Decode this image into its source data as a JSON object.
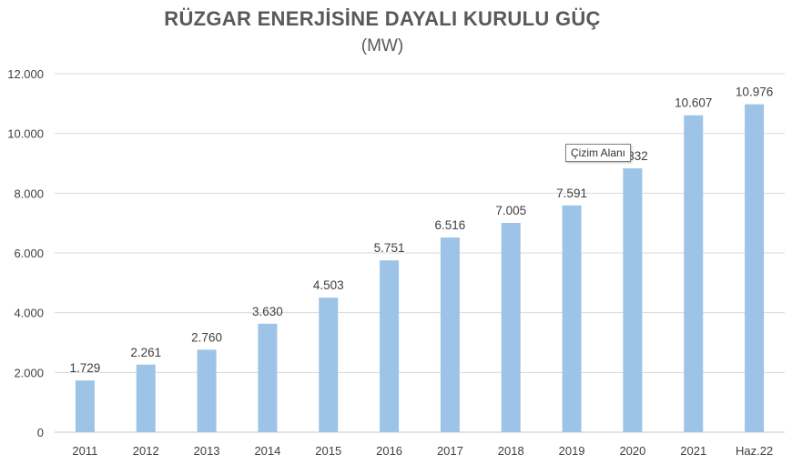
{
  "chart_data": {
    "type": "bar",
    "title": "RÜZGAR ENERJİSİNE DAYALI KURULU GÜÇ",
    "subtitle": "(MW)",
    "categories": [
      "2011",
      "2012",
      "2013",
      "2014",
      "2015",
      "2016",
      "2017",
      "2018",
      "2019",
      "2020",
      "2021",
      "Haz.22"
    ],
    "values": [
      1729,
      2261,
      2760,
      3630,
      4503,
      5751,
      6516,
      7005,
      7591,
      8832,
      10607,
      10976
    ],
    "value_labels": [
      "1.729",
      "2.261",
      "2.760",
      "3.630",
      "4.503",
      "5.751",
      "6.516",
      "7.005",
      "7.591",
      "8.832",
      "10.607",
      "10.976"
    ],
    "ylim": [
      0,
      12000
    ],
    "yticks": [
      0,
      2000,
      4000,
      6000,
      8000,
      10000,
      12000
    ],
    "ytick_labels": [
      "0",
      "2.000",
      "4.000",
      "6.000",
      "8.000",
      "10.000",
      "12.000"
    ],
    "grid": true,
    "bar_color": "#9dc3e6",
    "label_color": "#404040"
  },
  "tooltip": {
    "text": "Çizim Alanı"
  }
}
